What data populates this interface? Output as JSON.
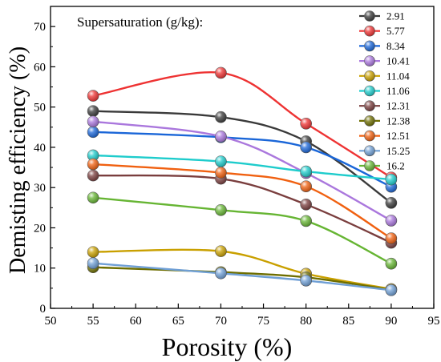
{
  "chart_data": {
    "type": "line",
    "title": "",
    "xlabel": "Porosity (%)",
    "ylabel": "Demisting efficiency (%)",
    "annotation": "Supersaturation (g/kg):",
    "xlim": [
      50,
      95
    ],
    "ylim": [
      0,
      75
    ],
    "xticks": [
      50,
      55,
      60,
      65,
      70,
      75,
      80,
      85,
      90,
      95
    ],
    "yticks": [
      0,
      10,
      20,
      30,
      40,
      50,
      60,
      70
    ],
    "x": [
      55,
      70,
      80,
      90
    ],
    "legend_position": "top-right",
    "grid": false,
    "series": [
      {
        "name": "2.91",
        "color": "#3a3a3a",
        "values": [
          49.0,
          47.5,
          41.5,
          26.2
        ]
      },
      {
        "name": "5.77",
        "color": "#ee3333",
        "values": [
          52.8,
          58.5,
          45.9,
          32.5
        ]
      },
      {
        "name": "8.34",
        "color": "#1a66d8",
        "values": [
          43.8,
          42.5,
          40.0,
          30.2
        ]
      },
      {
        "name": "10.41",
        "color": "#aa77dd",
        "values": [
          46.4,
          42.7,
          33.6,
          21.8
        ]
      },
      {
        "name": "11.04",
        "color": "#c9a000",
        "values": [
          14.0,
          14.2,
          8.6,
          4.8
        ]
      },
      {
        "name": "11.06",
        "color": "#1ecccc",
        "values": [
          38.0,
          36.5,
          34.0,
          32.0
        ]
      },
      {
        "name": "12.31",
        "color": "#7a3e3e",
        "values": [
          33.0,
          32.2,
          25.8,
          16.3
        ]
      },
      {
        "name": "12.38",
        "color": "#6e6e00",
        "values": [
          10.2,
          9.0,
          7.7,
          4.6
        ]
      },
      {
        "name": "12.51",
        "color": "#f06010",
        "values": [
          35.8,
          33.7,
          30.3,
          17.4
        ]
      },
      {
        "name": "15.25",
        "color": "#6f9fd5",
        "values": [
          11.2,
          8.7,
          6.9,
          4.5
        ]
      },
      {
        "name": "16.2",
        "color": "#66b533",
        "values": [
          27.5,
          24.4,
          21.7,
          11.1
        ]
      }
    ]
  }
}
